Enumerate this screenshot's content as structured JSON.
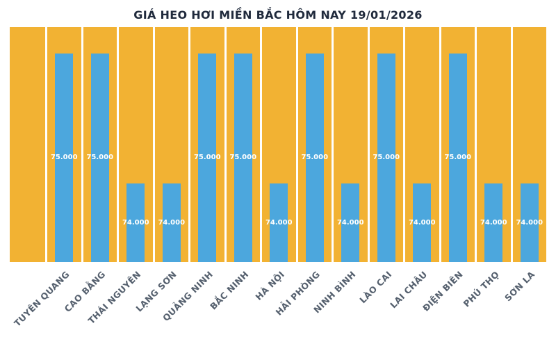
{
  "chart_data": {
    "type": "bar",
    "title": "GIÁ HEO HƠI MIỀN BẮC HÔM NAY 19/01/2026",
    "categories": [
      "TUYÊN QUANG",
      "CAO BẰNG",
      "THÁI NGUYÊN",
      "LẠNG SƠN",
      "QUẢNG NINH",
      "BẮC NINH",
      "HÀ NỘI",
      "HẢI PHÒNG",
      "NINH BÌNH",
      "LÀO CAI",
      "LAI CHÂU",
      "ĐIỆN BIÊN",
      "PHÚ THỌ",
      "SƠN LA"
    ],
    "values": [
      75000,
      75000,
      74000,
      74000,
      75000,
      75000,
      74000,
      75000,
      74000,
      75000,
      74000,
      75000,
      74000,
      74000
    ],
    "value_labels": [
      "75.000",
      "75.000",
      "74.000",
      "74.000",
      "75.000",
      "75.000",
      "74.000",
      "75.000",
      "74.000",
      "75.000",
      "74.000",
      "75.000",
      "74.000",
      "74.000"
    ],
    "xlabel": "",
    "ylabel": "",
    "ylim": [
      73400,
      75200
    ],
    "grid": "vertical white column separators",
    "legend_position": "none",
    "value_label_position": "inside-center",
    "colors": {
      "plot_background": "#F2B233",
      "bar": "#4CA7DD",
      "value_label": "#FFFFFF",
      "category_label": "#55606E",
      "title": "#202A3C"
    }
  }
}
